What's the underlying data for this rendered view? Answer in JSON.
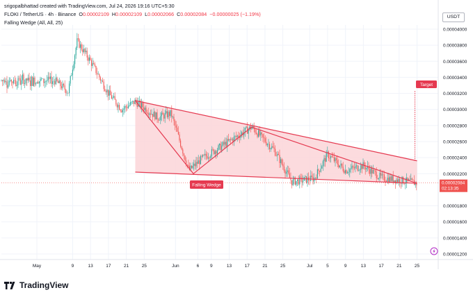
{
  "header": {
    "author_line": "srigopalbhattad created with TradingView.com, Jul 24, 2026 19:16 UTC+5:30",
    "symbol": "FLOKI / TetherUS · 4h · Binance",
    "ohlc": [
      {
        "k": "O",
        "v": "0.00002109"
      },
      {
        "k": "H",
        "v": "0.00002109"
      },
      {
        "k": "L",
        "v": "0.00002066"
      },
      {
        "k": "C",
        "v": "0.00002084"
      }
    ],
    "change": "−0.00000025 (−1.19%)",
    "indicator": "Falling Wedge (All, All, 25)"
  },
  "currency_button": "USDT",
  "footer": {
    "brand": "TradingView"
  },
  "colors": {
    "up": "#26a69a",
    "down": "#ef5350",
    "wedge_line": "#e53950",
    "wedge_fill": "#fbd5d8",
    "label_bg": "#e53950",
    "grid": "#f0f3fa",
    "axis_text": "#131722"
  },
  "chart_data": {
    "type": "candlestick",
    "symbol": "FLOKI/USDT",
    "timeframe": "4h",
    "x_ticks": [
      "May",
      "9",
      "13",
      "17",
      "21",
      "25",
      "Jun",
      "6",
      "9",
      "13",
      "17",
      "21",
      "25",
      "Jul",
      "5",
      "9",
      "13",
      "17",
      "21",
      "25"
    ],
    "y_ticks": [
      "0.00004000",
      "0.00003800",
      "0.00003600",
      "0.00003400",
      "0.00003200",
      "0.00003000",
      "0.00002800",
      "0.00002600",
      "0.00002400",
      "0.00002200",
      "0.00001800",
      "0.00001600",
      "0.00001400",
      "0.00001200"
    ],
    "ylim": [
      1.12e-05,
      4.11e-05
    ],
    "price_path": [
      {
        "date": "May 5",
        "price": 3.36e-05
      },
      {
        "date": "May 8",
        "price": 3.22e-05
      },
      {
        "date": "May 10",
        "price": 3.85e-05
      },
      {
        "date": "May 13",
        "price": 3.6e-05
      },
      {
        "date": "May 17",
        "price": 3.2e-05
      },
      {
        "date": "May 20",
        "price": 3e-05
      },
      {
        "date": "May 23",
        "price": 3.1e-05
      },
      {
        "date": "May 28",
        "price": 2.9e-05
      },
      {
        "date": "May 31",
        "price": 2.95e-05
      },
      {
        "date": "Jun 4",
        "price": 2.24e-05
      },
      {
        "date": "Jun 7",
        "price": 2.39e-05
      },
      {
        "date": "Jun 18",
        "price": 2.78e-05
      },
      {
        "date": "Jun 23",
        "price": 2.5e-05
      },
      {
        "date": "Jun 27",
        "price": 2.1e-05
      },
      {
        "date": "Jul 2",
        "price": 2.14e-05
      },
      {
        "date": "Jul 5",
        "price": 2.44e-05
      },
      {
        "date": "Jul 9",
        "price": 2.24e-05
      },
      {
        "date": "Jul 13",
        "price": 2.3e-05
      },
      {
        "date": "Jul 17",
        "price": 2.15e-05
      },
      {
        "date": "Jul 21",
        "price": 2.12e-05
      },
      {
        "date": "Jul 25",
        "price": 2.08e-05
      }
    ],
    "wedge": {
      "upper": [
        {
          "date": "May 23",
          "price": 3.11e-05
        },
        {
          "date": "Jul 25",
          "price": 2.36e-05
        }
      ],
      "lower": [
        {
          "date": "May 23",
          "price": 2.22e-05
        },
        {
          "date": "Jul 25",
          "price": 2.08e-05
        }
      ],
      "zigzag": [
        {
          "date": "May 23",
          "price": 3.11e-05
        },
        {
          "date": "Jun 5",
          "price": 2.2e-05
        },
        {
          "date": "Jun 18",
          "price": 2.78e-05
        },
        {
          "date": "Jul 25",
          "price": 2.08e-05
        }
      ],
      "target": 3.23e-05
    },
    "annotations": [
      "Falling Wedge",
      "Target"
    ],
    "last_price": "0.00002084",
    "countdown": "02:13:35",
    "grid": true
  }
}
